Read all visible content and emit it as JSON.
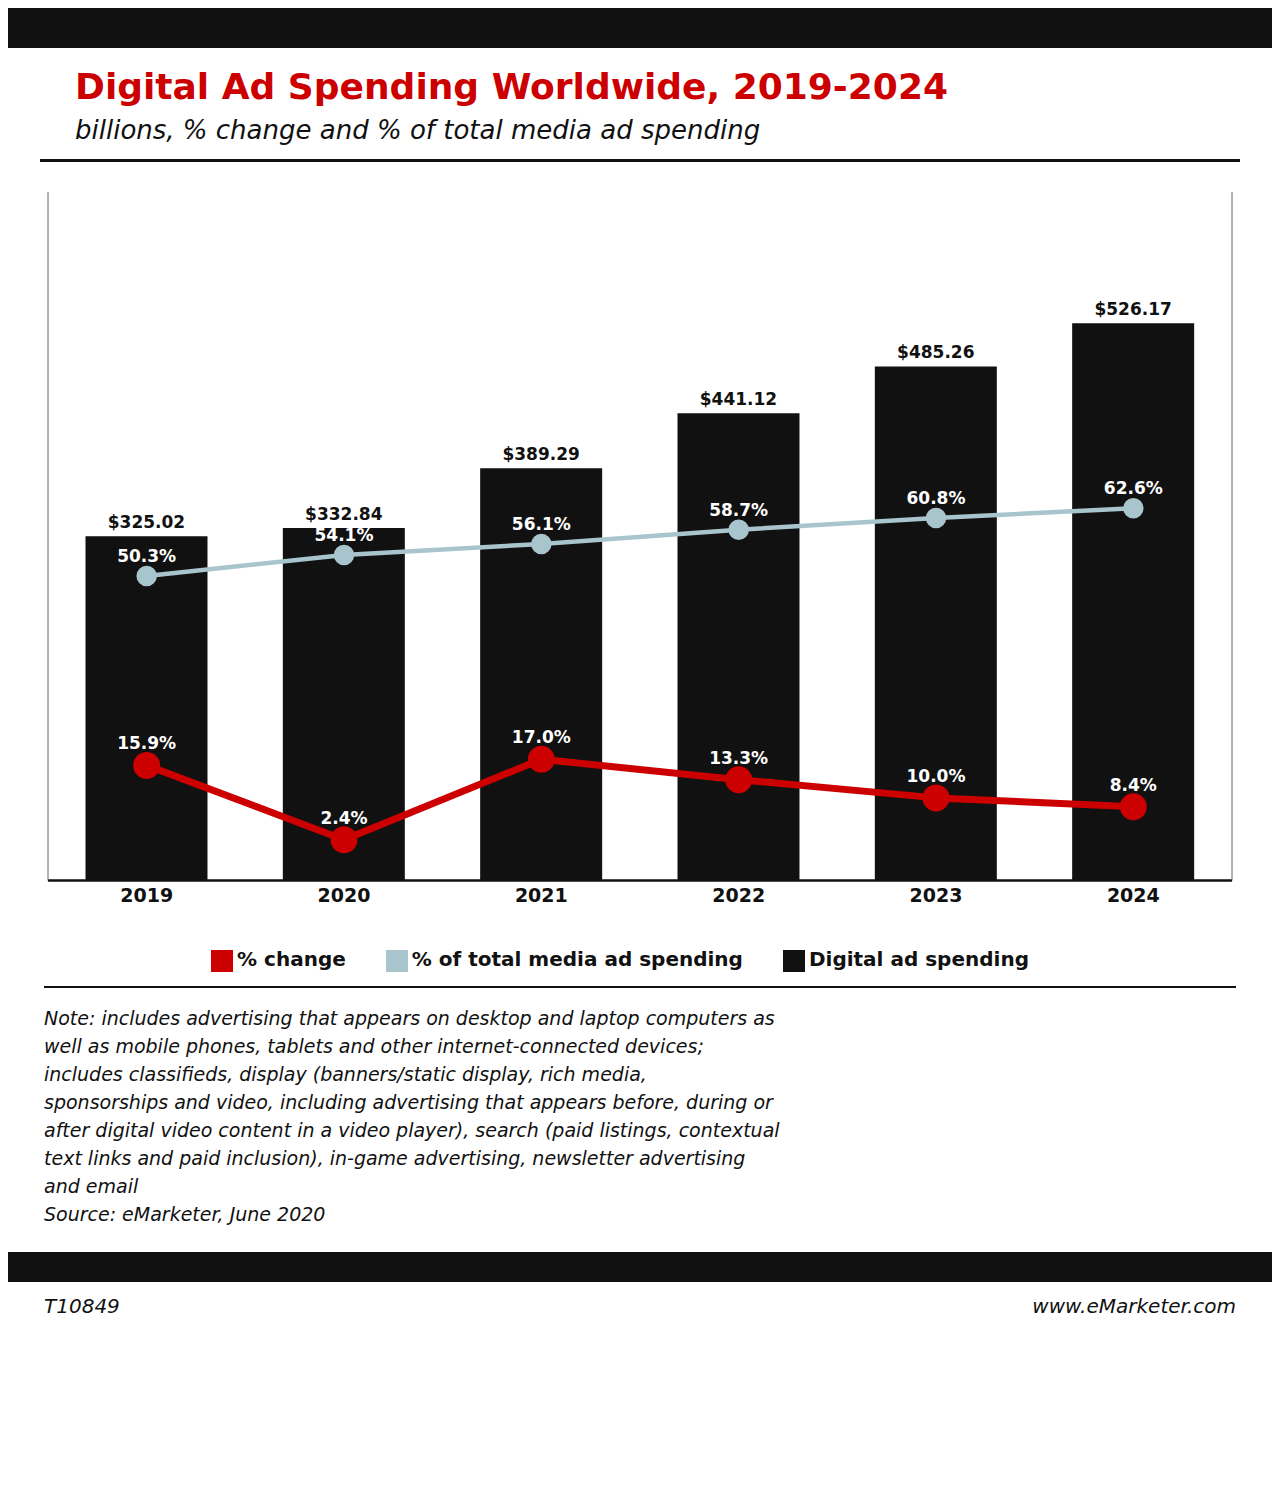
{
  "chart_data": {
    "type": "bar",
    "title": "Digital Ad Spending Worldwide, 2019-2024",
    "subtitle": "billions, % change and % of total media ad spending",
    "categories": [
      "2019",
      "2020",
      "2021",
      "2022",
      "2023",
      "2024"
    ],
    "ylim": [
      0,
      650
    ],
    "y2lim": [
      -5,
      120
    ],
    "tick_labels": "x",
    "grid": false,
    "legend": "bottom",
    "data_labels": true,
    "series": [
      {
        "name": "Digital ad spending",
        "type": "bar",
        "color": "#111111",
        "values": [
          325.02,
          332.84,
          389.29,
          441.12,
          485.26,
          526.17
        ],
        "value_labels": [
          "$325.02",
          "$332.84",
          "$389.29",
          "$441.12",
          "$485.26",
          "$526.17"
        ]
      },
      {
        "name": "% change",
        "type": "line",
        "axis": "y2",
        "color": "#cc0000",
        "marker": "circle",
        "values": [
          15.9,
          2.4,
          17.0,
          13.3,
          10.0,
          8.4
        ],
        "value_labels": [
          "15.9%",
          "2.4%",
          "17.0%",
          "13.3%",
          "10.0%",
          "8.4%"
        ]
      },
      {
        "name": "% of total media ad spending",
        "type": "line",
        "axis": "y2",
        "color": "#a8c4cc",
        "marker": "circle",
        "values": [
          50.3,
          54.1,
          56.1,
          58.7,
          60.8,
          62.6
        ],
        "value_labels": [
          "50.3%",
          "54.1%",
          "56.1%",
          "58.7%",
          "60.8%",
          "62.6%"
        ]
      }
    ],
    "annotations": [
      "Note: includes advertising that appears on desktop and laptop computers as",
      "well as mobile phones, tablets and other internet-connected devices;",
      "includes classifieds, display (banners/static display, rich media,",
      "sponsorships and video, including advertising that appears before, during or",
      "after digital video content in a video player), search (paid listings, contextual",
      "text links and paid inclusion), in-game advertising, newsletter advertising",
      "and email",
      "Source: eMarketer, June 2020",
      "T10849",
      "www.eMarketer.com"
    ]
  }
}
